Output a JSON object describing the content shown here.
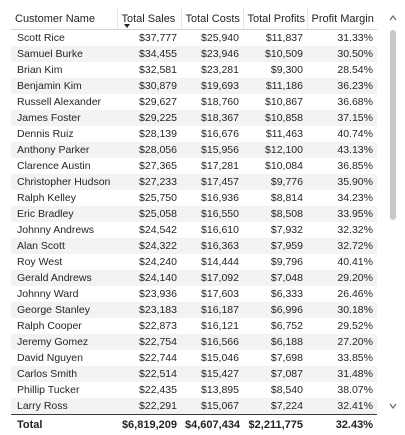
{
  "columns": [
    "Customer Name",
    "Total Sales",
    "Total Costs",
    "Total Profits",
    "Profit Margin"
  ],
  "sorted_column": "Total Sales",
  "rows": [
    [
      "Scott Rice",
      "$37,777",
      "$25,940",
      "$11,837",
      "31.33%"
    ],
    [
      "Samuel Burke",
      "$34,455",
      "$23,946",
      "$10,509",
      "30.50%"
    ],
    [
      "Brian Kim",
      "$32,581",
      "$23,281",
      "$9,300",
      "28.54%"
    ],
    [
      "Benjamin Kim",
      "$30,879",
      "$19,693",
      "$11,186",
      "36.23%"
    ],
    [
      "Russell Alexander",
      "$29,627",
      "$18,760",
      "$10,867",
      "36.68%"
    ],
    [
      "James Foster",
      "$29,225",
      "$18,367",
      "$10,858",
      "37.15%"
    ],
    [
      "Dennis Ruiz",
      "$28,139",
      "$16,676",
      "$11,463",
      "40.74%"
    ],
    [
      "Anthony Parker",
      "$28,056",
      "$15,956",
      "$12,100",
      "43.13%"
    ],
    [
      "Clarence Austin",
      "$27,365",
      "$17,281",
      "$10,084",
      "36.85%"
    ],
    [
      "Christopher Hudson",
      "$27,233",
      "$17,457",
      "$9,776",
      "35.90%"
    ],
    [
      "Ralph Kelley",
      "$25,750",
      "$16,936",
      "$8,814",
      "34.23%"
    ],
    [
      "Eric Bradley",
      "$25,058",
      "$16,550",
      "$8,508",
      "33.95%"
    ],
    [
      "Johnny Andrews",
      "$24,542",
      "$16,610",
      "$7,932",
      "32.32%"
    ],
    [
      "Alan Scott",
      "$24,322",
      "$16,363",
      "$7,959",
      "32.72%"
    ],
    [
      "Roy West",
      "$24,240",
      "$14,444",
      "$9,796",
      "40.41%"
    ],
    [
      "Gerald Andrews",
      "$24,140",
      "$17,092",
      "$7,048",
      "29.20%"
    ],
    [
      "Johnny Ward",
      "$23,936",
      "$17,603",
      "$6,333",
      "26.46%"
    ],
    [
      "George Stanley",
      "$23,183",
      "$16,187",
      "$6,996",
      "30.18%"
    ],
    [
      "Ralph Cooper",
      "$22,873",
      "$16,121",
      "$6,752",
      "29.52%"
    ],
    [
      "Jeremy Gomez",
      "$22,754",
      "$16,566",
      "$6,188",
      "27.20%"
    ],
    [
      "David Nguyen",
      "$22,744",
      "$15,046",
      "$7,698",
      "33.85%"
    ],
    [
      "Carlos Smith",
      "$22,514",
      "$15,427",
      "$7,087",
      "31.48%"
    ],
    [
      "Phillip Tucker",
      "$22,435",
      "$13,895",
      "$8,540",
      "38.07%"
    ],
    [
      "Larry Ross",
      "$22,291",
      "$15,067",
      "$7,224",
      "32.41%"
    ]
  ],
  "totals": [
    "Total",
    "$6,819,209",
    "$4,607,434",
    "$2,211,775",
    "32.43%"
  ],
  "icons": {
    "sort": "sort-descending-icon",
    "scroll_up": "chevron-up-icon",
    "scroll_down": "chevron-down-icon"
  },
  "colors": {
    "text": "#252423",
    "row_stripe": "#f3f3f3",
    "scroll_thumb": "#c8c8c8"
  }
}
